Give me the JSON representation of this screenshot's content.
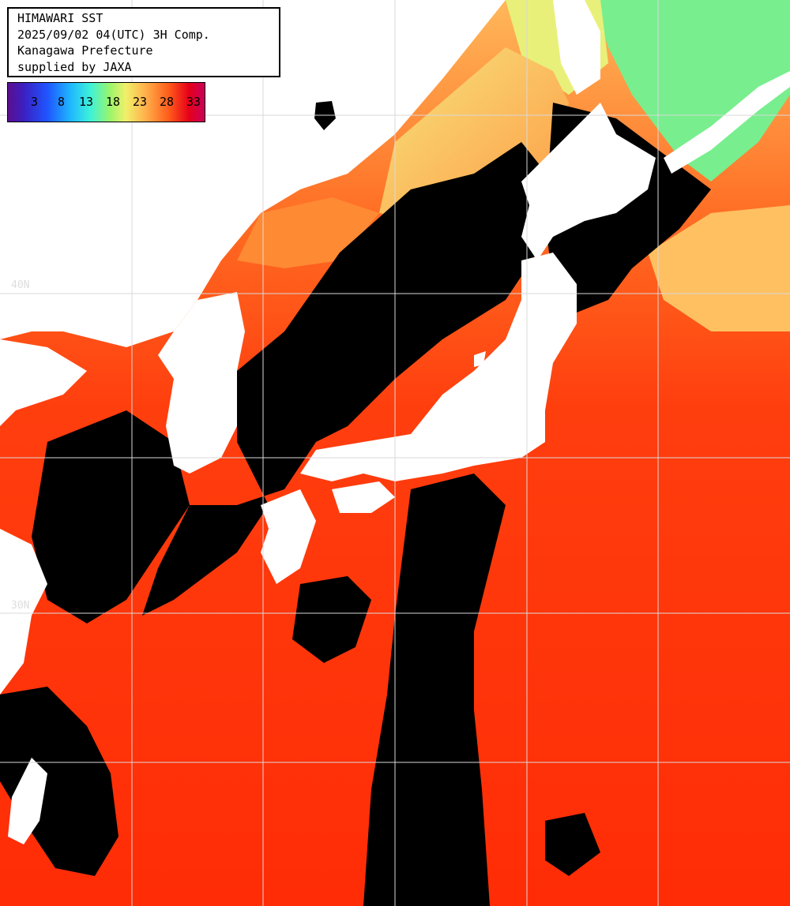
{
  "header": {
    "line1": "HIMAWARI SST",
    "line2": "2025/09/02 04(UTC) 3H Comp.",
    "line3": "Kanagawa Prefecture",
    "line4": "supplied by JAXA"
  },
  "colorbar": {
    "ticks": [
      "3",
      "8",
      "13",
      "18",
      "23",
      "28",
      "33"
    ]
  },
  "map": {
    "lat_labels": [
      "40N",
      "30N"
    ],
    "colors": {
      "land": "#ffffff",
      "cloud": "#000000",
      "warm_sea": "#ff3a0a",
      "mid_sea": "#ff7a2a",
      "cool_sea": "#f3d27a",
      "cold_sea": "#7ef08a",
      "grid": "#d9d9d9"
    }
  }
}
